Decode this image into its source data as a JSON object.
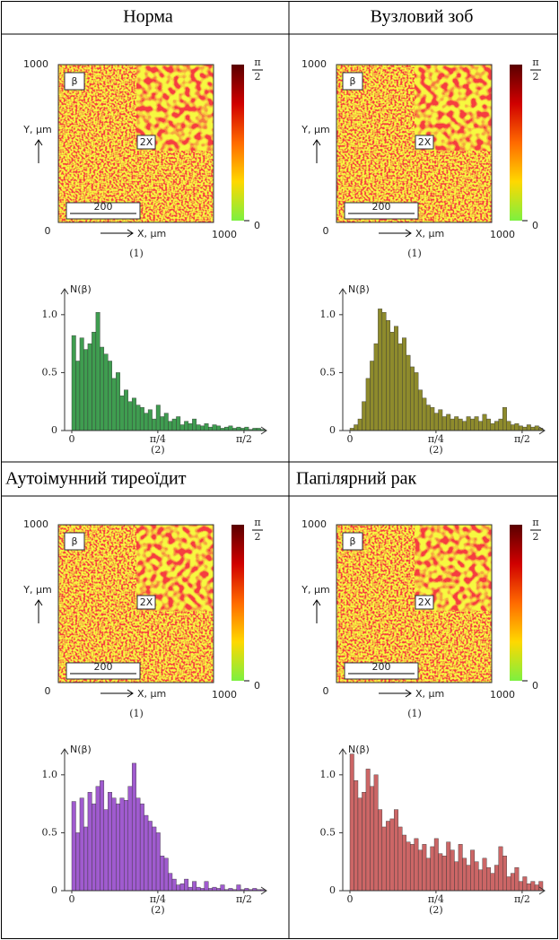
{
  "panels": [
    {
      "title": "Норма",
      "map": {
        "y_max_label": "1000",
        "y_label": "Y, μm",
        "symbol": "β",
        "zoom": "2X",
        "scale_bar": "200",
        "origin": "0",
        "x_label": "X, μm",
        "x_max_label": "1000",
        "caption": "(1)",
        "colorbar_top_num": "π",
        "colorbar_top_den": "2",
        "colorbar_bottom": "0"
      },
      "histogram": {
        "type": "bar",
        "y_label": "N(β)",
        "caption": "(2)",
        "color": "#3f9d50",
        "values": [
          0.82,
          0.6,
          0.8,
          0.7,
          0.75,
          0.85,
          1.02,
          0.72,
          0.66,
          0.6,
          0.45,
          0.5,
          0.3,
          0.35,
          0.25,
          0.28,
          0.22,
          0.2,
          0.15,
          0.18,
          0.1,
          0.22,
          0.12,
          0.15,
          0.08,
          0.1,
          0.12,
          0.05,
          0.08,
          0.06,
          0.1,
          0.05,
          0.04,
          0.06,
          0.03,
          0.05,
          0.04,
          0.02,
          0.03,
          0.04,
          0.02,
          0.03,
          0.02,
          0.03,
          0.01,
          0.02,
          0.02,
          0.01
        ],
        "xlim": [
          0,
          1.76
        ],
        "ylim": [
          0,
          1.2
        ],
        "xticks": [
          0,
          {
            "value": 0.785,
            "label": "π/4"
          },
          {
            "value": 1.571,
            "label": "π/2"
          }
        ],
        "yticks": [
          0,
          0.5,
          {
            "value": 1,
            "label": "1.0"
          }
        ]
      }
    },
    {
      "title": "Вузловий зоб",
      "map": {
        "y_max_label": "1000",
        "y_label": "Y, μm",
        "symbol": "β",
        "zoom": "2X",
        "scale_bar": "200",
        "origin": "0",
        "x_label": "X, μm",
        "x_max_label": "1000",
        "caption": "(1)",
        "colorbar_top_num": "π",
        "colorbar_top_den": "2",
        "colorbar_bottom": "0"
      },
      "histogram": {
        "type": "bar",
        "y_label": "N(β)",
        "caption": "(2)",
        "color": "#8e8b2c",
        "values": [
          0.02,
          0.05,
          0.1,
          0.25,
          0.45,
          0.6,
          0.75,
          1.05,
          1.02,
          0.95,
          0.85,
          0.9,
          0.75,
          0.8,
          0.65,
          0.55,
          0.5,
          0.35,
          0.28,
          0.22,
          0.2,
          0.15,
          0.18,
          0.12,
          0.14,
          0.1,
          0.12,
          0.1,
          0.08,
          0.12,
          0.1,
          0.12,
          0.08,
          0.14,
          0.1,
          0.06,
          0.08,
          0.1,
          0.2,
          0.08,
          0.05,
          0.06,
          0.04,
          0.03,
          0.05,
          0.03,
          0.04,
          0.02
        ],
        "xlim": [
          0,
          1.76
        ],
        "ylim": [
          0,
          1.2
        ],
        "xticks": [
          0,
          {
            "value": 0.785,
            "label": "π/4"
          },
          {
            "value": 1.571,
            "label": "π/2"
          }
        ],
        "yticks": [
          0,
          0.5,
          {
            "value": 1,
            "label": "1.0"
          }
        ]
      }
    },
    {
      "title": "Аутоімунний тиреоїдит",
      "map": {
        "y_max_label": "1000",
        "y_label": "Y, μm",
        "symbol": "β",
        "zoom": "2X",
        "scale_bar": "200",
        "origin": "0",
        "x_label": "X, μm",
        "x_max_label": "1000",
        "caption": "(1)",
        "colorbar_top_num": "π",
        "colorbar_top_den": "2",
        "colorbar_bottom": "0"
      },
      "histogram": {
        "type": "bar",
        "y_label": "N(β)",
        "caption": "(2)",
        "color": "#a05bcf",
        "values": [
          0.77,
          0.5,
          0.8,
          0.55,
          0.85,
          0.75,
          0.9,
          0.95,
          0.7,
          0.85,
          0.8,
          0.75,
          0.8,
          0.78,
          0.9,
          1.1,
          0.8,
          0.75,
          0.65,
          0.6,
          0.55,
          0.5,
          0.3,
          0.28,
          0.15,
          0.1,
          0.05,
          0.06,
          0.1,
          0.03,
          0.08,
          0.03,
          0.02,
          0.08,
          0.02,
          0.03,
          0.02,
          0.05,
          0.01,
          0.02,
          0.01,
          0.05,
          0.01,
          0.02,
          0.01,
          0.02,
          0.01,
          0.01
        ],
        "xlim": [
          0,
          1.76
        ],
        "ylim": [
          0,
          1.2
        ],
        "xticks": [
          0,
          {
            "value": 0.785,
            "label": "π/4"
          },
          {
            "value": 1.571,
            "label": "π/2"
          }
        ],
        "yticks": [
          0,
          0.5,
          {
            "value": 1,
            "label": "1.0"
          }
        ]
      }
    },
    {
      "title": "Папілярний рак",
      "map": {
        "y_max_label": "1000",
        "y_label": "Y, μm",
        "symbol": "β",
        "zoom": "2X",
        "scale_bar": "200",
        "origin": "0",
        "x_label": "X, μm",
        "x_max_label": "1000",
        "caption": "(1)",
        "colorbar_top_num": "π",
        "colorbar_top_den": "2",
        "colorbar_bottom": "0"
      },
      "histogram": {
        "type": "bar",
        "y_label": "N(β)",
        "caption": "(2)",
        "color": "#cc6666",
        "values": [
          1.18,
          0.95,
          0.8,
          0.85,
          1.05,
          0.9,
          1.0,
          0.7,
          0.55,
          0.6,
          0.62,
          0.7,
          0.55,
          0.48,
          0.42,
          0.4,
          0.45,
          0.35,
          0.4,
          0.28,
          0.38,
          0.45,
          0.32,
          0.3,
          0.42,
          0.35,
          0.25,
          0.4,
          0.28,
          0.22,
          0.35,
          0.25,
          0.18,
          0.28,
          0.2,
          0.15,
          0.22,
          0.38,
          0.3,
          0.12,
          0.15,
          0.2,
          0.08,
          0.12,
          0.06,
          0.08,
          0.05,
          0.08
        ],
        "xlim": [
          0,
          1.76
        ],
        "ylim": [
          0,
          1.2
        ],
        "xticks": [
          0,
          {
            "value": 0.785,
            "label": "π/4"
          },
          {
            "value": 1.571,
            "label": "π/2"
          }
        ],
        "yticks": [
          0,
          0.5,
          {
            "value": 1,
            "label": "1.0"
          }
        ]
      }
    }
  ]
}
